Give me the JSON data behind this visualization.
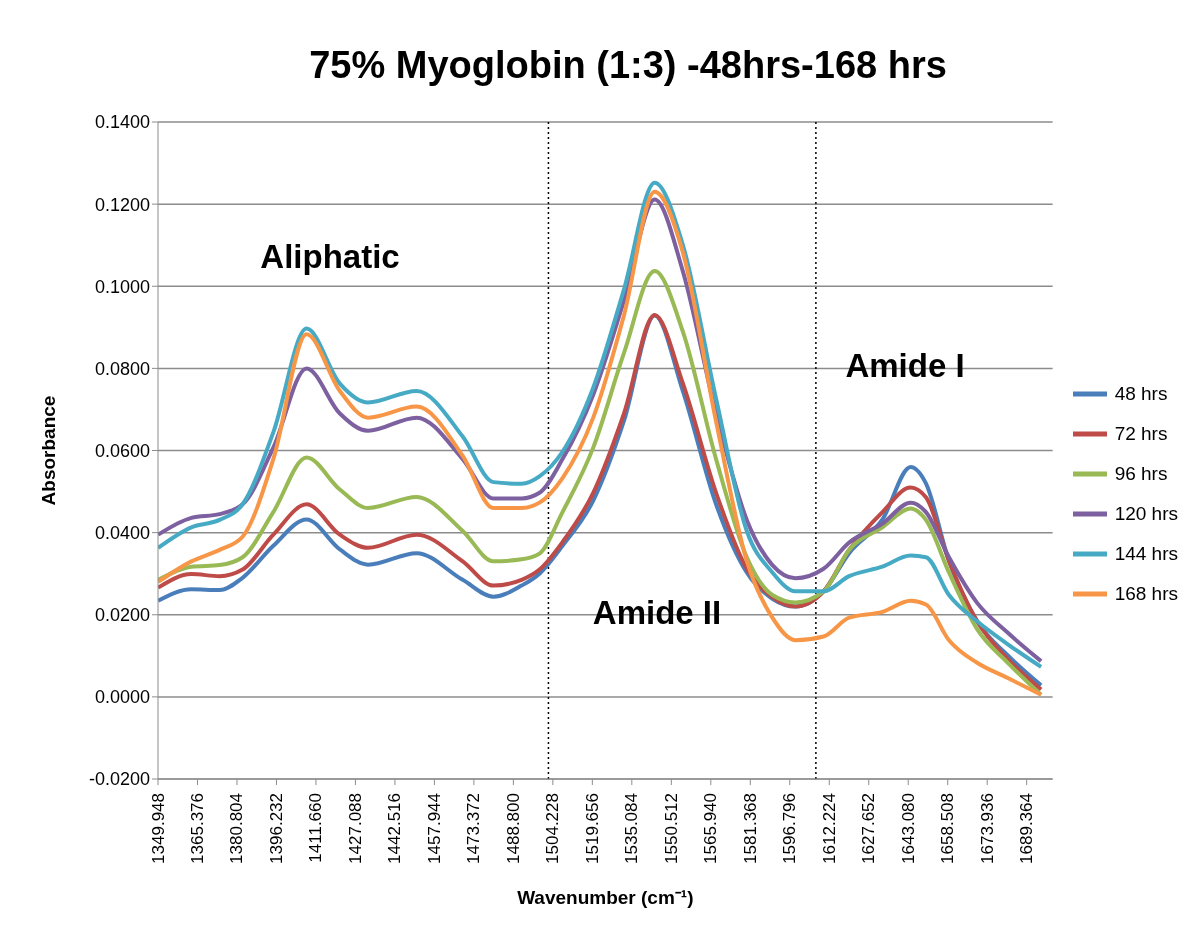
{
  "chart_data": {
    "type": "line",
    "title": "75% Myoglobin (1:3) -48hrs-168 hrs",
    "xlabel": "Wavenumber (cm⁻¹)",
    "ylabel": "Absorbance",
    "x": [
      1350,
      1363,
      1374,
      1383,
      1395,
      1408,
      1421,
      1432,
      1451,
      1469,
      1481,
      1492,
      1499,
      1508,
      1520,
      1532,
      1544,
      1555,
      1568,
      1580,
      1590,
      1599,
      1610,
      1620,
      1633,
      1644,
      1650,
      1659,
      1670,
      1682,
      1695
    ],
    "series": [
      {
        "name": "48 hrs",
        "color": "#4a7ebb",
        "values": [
          0.0234,
          0.0262,
          0.026,
          0.029,
          0.0368,
          0.0432,
          0.0359,
          0.0322,
          0.035,
          0.0285,
          0.0244,
          0.0271,
          0.03,
          0.0368,
          0.0478,
          0.0672,
          0.0929,
          0.0745,
          0.0469,
          0.0303,
          0.0239,
          0.022,
          0.0257,
          0.035,
          0.0432,
          0.056,
          0.052,
          0.0331,
          0.0184,
          0.0101,
          0.0028
        ]
      },
      {
        "name": "72 hrs",
        "color": "#be4b48",
        "values": [
          0.0266,
          0.0299,
          0.0294,
          0.031,
          0.0395,
          0.0469,
          0.0395,
          0.0363,
          0.0395,
          0.033,
          0.0271,
          0.0285,
          0.031,
          0.0377,
          0.0497,
          0.069,
          0.093,
          0.0764,
          0.0497,
          0.0312,
          0.0243,
          0.022,
          0.0257,
          0.0358,
          0.045,
          0.051,
          0.0486,
          0.0331,
          0.0184,
          0.0092,
          0.0018
        ]
      },
      {
        "name": "96 hrs",
        "color": "#98b954",
        "values": [
          0.0285,
          0.0317,
          0.0321,
          0.034,
          0.045,
          0.0583,
          0.0505,
          0.046,
          0.0487,
          0.0404,
          0.033,
          0.0335,
          0.0349,
          0.045,
          0.0607,
          0.0837,
          0.1037,
          0.089,
          0.0579,
          0.034,
          0.0248,
          0.023,
          0.0257,
          0.0358,
          0.0413,
          0.0459,
          0.0431,
          0.0303,
          0.0165,
          0.0083,
          0.0005
        ]
      },
      {
        "name": "120 hrs",
        "color": "#7d60a0",
        "values": [
          0.0395,
          0.0436,
          0.0445,
          0.0469,
          0.0607,
          0.08,
          0.069,
          0.0648,
          0.068,
          0.0579,
          0.0483,
          0.0483,
          0.0497,
          0.0579,
          0.0736,
          0.0965,
          0.1211,
          0.1037,
          0.069,
          0.0431,
          0.0321,
          0.0289,
          0.0312,
          0.0376,
          0.0422,
          0.0473,
          0.045,
          0.034,
          0.0229,
          0.0156,
          0.0087
        ]
      },
      {
        "name": "144 hrs",
        "color": "#46aac5",
        "values": [
          0.0363,
          0.0413,
          0.0431,
          0.0469,
          0.0644,
          0.0897,
          0.0763,
          0.0717,
          0.0745,
          0.0634,
          0.0523,
          0.0519,
          0.0537,
          0.0597,
          0.0753,
          0.0992,
          0.1252,
          0.1101,
          0.0726,
          0.0404,
          0.0303,
          0.0257,
          0.0257,
          0.0294,
          0.0317,
          0.0344,
          0.034,
          0.0248,
          0.0184,
          0.0128,
          0.0073
        ]
      },
      {
        "name": "168 hrs",
        "color": "#f79646",
        "values": [
          0.028,
          0.033,
          0.0358,
          0.039,
          0.0579,
          0.0883,
          0.0745,
          0.068,
          0.0707,
          0.0587,
          0.046,
          0.046,
          0.0473,
          0.0533,
          0.068,
          0.0929,
          0.123,
          0.1083,
          0.0671,
          0.0331,
          0.0193,
          0.0138,
          0.0147,
          0.0193,
          0.0207,
          0.0234,
          0.0225,
          0.0138,
          0.0083,
          0.0046,
          0.0005
        ]
      }
    ],
    "xlim": [
      1349.948,
      1699.5
    ],
    "xticks": [
      {
        "value": 1349.948,
        "label": "1349.948"
      },
      {
        "value": 1365.376,
        "label": "1365.376"
      },
      {
        "value": 1380.804,
        "label": "1380.804"
      },
      {
        "value": 1396.232,
        "label": "1396.232"
      },
      {
        "value": 1411.66,
        "label": "1411.660"
      },
      {
        "value": 1427.088,
        "label": "1427.088"
      },
      {
        "value": 1442.516,
        "label": "1442.516"
      },
      {
        "value": 1457.944,
        "label": "1457.944"
      },
      {
        "value": 1473.372,
        "label": "1473.372"
      },
      {
        "value": 1488.8,
        "label": "1488.800"
      },
      {
        "value": 1504.228,
        "label": "1504.228"
      },
      {
        "value": 1519.656,
        "label": "1519.656"
      },
      {
        "value": 1535.084,
        "label": "1535.084"
      },
      {
        "value": 1550.512,
        "label": "1550.512"
      },
      {
        "value": 1565.94,
        "label": "1565.940"
      },
      {
        "value": 1581.368,
        "label": "1581.368"
      },
      {
        "value": 1596.796,
        "label": "1596.796"
      },
      {
        "value": 1612.224,
        "label": "1612.224"
      },
      {
        "value": 1627.652,
        "label": "1627.652"
      },
      {
        "value": 1643.08,
        "label": "1643.080"
      },
      {
        "value": 1658.508,
        "label": "1658.508"
      },
      {
        "value": 1673.936,
        "label": "1673.936"
      },
      {
        "value": 1689.364,
        "label": "1689.364"
      }
    ],
    "ylim": [
      -0.02,
      0.14
    ],
    "yticks": [
      {
        "value": -0.02,
        "label": "-0.0200"
      },
      {
        "value": 0,
        "label": "0.0000"
      },
      {
        "value": 0.02,
        "label": "0.0200"
      },
      {
        "value": 0.04,
        "label": "0.0400"
      },
      {
        "value": 0.06,
        "label": "0.0600"
      },
      {
        "value": 0.08,
        "label": "0.0800"
      },
      {
        "value": 0.1,
        "label": "0.1000"
      },
      {
        "value": 0.12,
        "label": "0.1200"
      },
      {
        "value": 0.14,
        "label": "0.1400"
      }
    ],
    "grid": "y",
    "legend": "right",
    "marker": "none",
    "line_style": "solid",
    "ref_lines": [
      {
        "axis": "x",
        "value": 1502.5,
        "label": null,
        "color": "#000000",
        "line_style": "dotted"
      },
      {
        "axis": "x",
        "value": 1607,
        "label": null,
        "color": "#000000",
        "line_style": "dotted"
      }
    ],
    "annotations": [
      "Aliphatic",
      "Amide II",
      "Amide I"
    ]
  }
}
